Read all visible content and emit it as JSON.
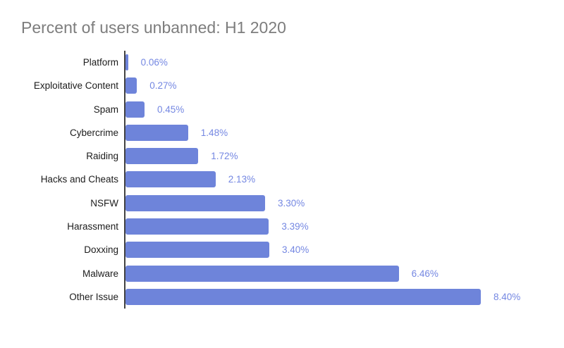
{
  "page": {
    "background": "#ffffff"
  },
  "chart_data": {
    "type": "bar",
    "orientation": "horizontal",
    "title": "Percent of users unbanned: H1 2020",
    "categories": [
      "Platform",
      "Exploitative Content",
      "Spam",
      "Cybercrime",
      "Raiding",
      "Hacks and Cheats",
      "NSFW",
      "Harassment",
      "Doxxing",
      "Malware",
      "Other Issue"
    ],
    "values": [
      0.06,
      0.27,
      0.45,
      1.48,
      1.72,
      2.13,
      3.3,
      3.39,
      3.4,
      6.46,
      8.4
    ],
    "value_labels": [
      "0.06%",
      "0.27%",
      "0.45%",
      "1.48%",
      "1.72%",
      "2.13%",
      "3.30%",
      "3.39%",
      "3.40%",
      "6.46%",
      "8.40%"
    ],
    "xlabel": "",
    "ylabel": "",
    "xlim": [
      0,
      10
    ],
    "grid": false,
    "legend_position": "none",
    "bar_color": "#6e84da",
    "value_label_color": "#7487e2",
    "category_label_color": "#1c1c1c",
    "axis_color": "#424242",
    "title_color": "#7d7d7d"
  }
}
